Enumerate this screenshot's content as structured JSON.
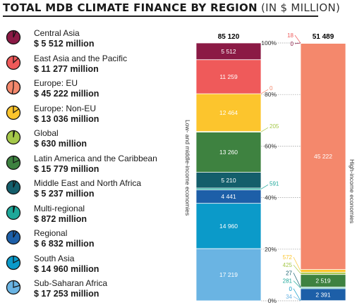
{
  "title": {
    "main": "TOTAL MDB CLIMATE FINANCE BY REGION",
    "unit": "(IN $ MILLION)"
  },
  "legend": [
    {
      "name": "Central Asia",
      "amount": "$ 5 512 million",
      "color": "#8b1a45",
      "share": 0.065
    },
    {
      "name": "East Asia and the Pacific",
      "amount": "$ 11 277 million",
      "color": "#ef5a5a",
      "share": 0.132
    },
    {
      "name": "Europe: EU",
      "amount": "$ 45 222 million",
      "color": "#f4886c",
      "share": 0.53
    },
    {
      "name": "Europe: Non-EU",
      "amount": "$ 13 036 million",
      "color": "#fcc52d",
      "share": 0.153
    },
    {
      "name": "Global",
      "amount": "$ 630 million",
      "color": "#a5c84a",
      "share": 0.03
    },
    {
      "name": "Latin America and the Caribbean",
      "amount": "$ 15 779 million",
      "color": "#3e8240",
      "share": 0.185
    },
    {
      "name": "Middle East and North Africa",
      "amount": "$ 5 237 million",
      "color": "#145e6b",
      "share": 0.061
    },
    {
      "name": "Multi-regional",
      "amount": "$ 872 million",
      "color": "#1ea89a",
      "share": 0.03
    },
    {
      "name": "Regional",
      "amount": "$ 6 832 million",
      "color": "#1d5fa8",
      "share": 0.08
    },
    {
      "name": "South Asia",
      "amount": "$ 14 960 million",
      "color": "#0b9ac9",
      "share": 0.175
    },
    {
      "name": "Sub-Saharan Africa",
      "amount": "$ 17 253 million",
      "color": "#6ab4e3",
      "share": 0.202
    }
  ],
  "chart_data": {
    "type": "bar",
    "stacked": true,
    "normalized_percent": true,
    "y_ticks": [
      "0%",
      "20%",
      "40%",
      "60%",
      "80%",
      "100%"
    ],
    "ylim": [
      0,
      100
    ],
    "bars": [
      {
        "label": "Low- and middle-income economies",
        "total": "85 120",
        "segments": [
          {
            "region": "Sub-Saharan Africa",
            "value": 17219,
            "text": "17 219"
          },
          {
            "region": "South Asia",
            "value": 14960,
            "text": "14 960"
          },
          {
            "region": "Regional",
            "value": 4441,
            "text": "4 441"
          },
          {
            "region": "Multi-regional",
            "value": 591,
            "text": "591"
          },
          {
            "region": "Middle East and North Africa",
            "value": 5210,
            "text": "5 210"
          },
          {
            "region": "Latin America and the Caribbean",
            "value": 13260,
            "text": "13 260"
          },
          {
            "region": "Global",
            "value": 205,
            "text": "205"
          },
          {
            "region": "Europe: Non-EU",
            "value": 12464,
            "text": "12 464"
          },
          {
            "region": "Europe: EU",
            "value": 0,
            "text": "0"
          },
          {
            "region": "East Asia and the Pacific",
            "value": 11259,
            "text": "11 259"
          },
          {
            "region": "Central Asia",
            "value": 5512,
            "text": "5 512"
          }
        ]
      },
      {
        "label": "High-income economies",
        "total": "51 489",
        "segments": [
          {
            "region": "Sub-Saharan Africa",
            "value": 34,
            "text": "34"
          },
          {
            "region": "South Asia",
            "value": 0,
            "text": "0"
          },
          {
            "region": "Regional",
            "value": 2391,
            "text": "2 391"
          },
          {
            "region": "Multi-regional",
            "value": 281,
            "text": "281"
          },
          {
            "region": "Middle East and North Africa",
            "value": 27,
            "text": "27"
          },
          {
            "region": "Latin America and the Caribbean",
            "value": 2519,
            "text": "2 519"
          },
          {
            "region": "Global",
            "value": 425,
            "text": "425"
          },
          {
            "region": "Europe: Non-EU",
            "value": 572,
            "text": "572"
          },
          {
            "region": "Europe: EU",
            "value": 45222,
            "text": "45 222"
          },
          {
            "region": "East Asia and the Pacific",
            "value": 18,
            "text": "18"
          },
          {
            "region": "Central Asia",
            "value": 0,
            "text": "0"
          }
        ]
      }
    ]
  }
}
